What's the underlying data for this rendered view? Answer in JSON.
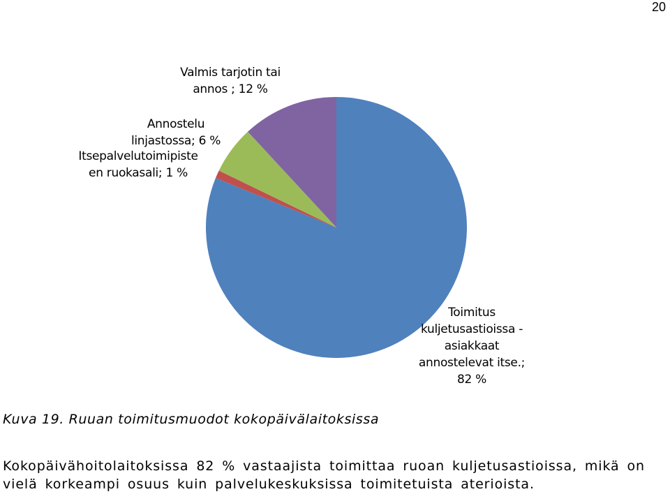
{
  "page_number": "20",
  "chart_data": {
    "type": "pie",
    "slices": [
      {
        "label_lines": [
          "Toimitus",
          "kuljetusastioissa -",
          "asiakkaat",
          "annostelevat itse.;",
          "82 %"
        ],
        "value": 82,
        "color": "#4F81BD"
      },
      {
        "label_lines": [
          "Itsepalvelutoimipiste",
          "en ruokasali; 1 %"
        ],
        "value": 1,
        "color": "#C0504D"
      },
      {
        "label_lines": [
          "Annostelu",
          "linjastossa; 6 %"
        ],
        "value": 6,
        "color": "#9BBB59"
      },
      {
        "label_lines": [
          "Valmis tarjotin tai",
          "annos ; 12 %"
        ],
        "value": 12,
        "color": "#8064A2"
      }
    ]
  },
  "caption": "Kuva 19. Ruuan toimitusmuodot kokopäivälaitoksissa",
  "body_lines": [
    "Kokopäivähoitolaitoksissa 82 % vastaajista toimittaa ruoan kuljetusastioissa, mikä on",
    "vielä korkeampi osuus kuin palvelukeskuksissa toimitetuista aterioista."
  ]
}
